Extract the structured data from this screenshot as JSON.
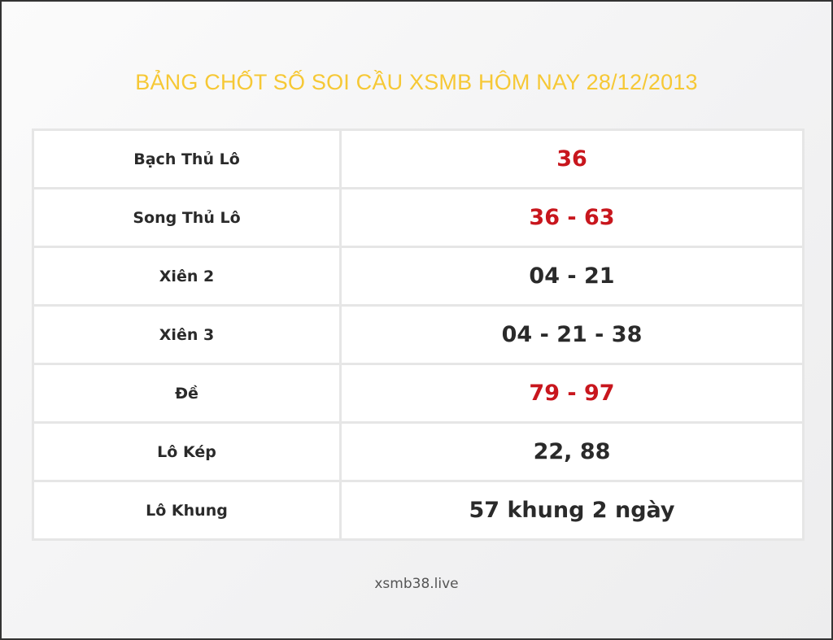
{
  "title": "BẢNG CHỐT SỐ SOI CẦU XSMB HÔM NAY 28/12/2013",
  "rows": [
    {
      "label": "Bạch Thủ Lô",
      "value": "36",
      "highlight": true
    },
    {
      "label": "Song Thủ Lô",
      "value": "36 - 63",
      "highlight": true
    },
    {
      "label": "Xiên 2",
      "value": "04 - 21",
      "highlight": false
    },
    {
      "label": "Xiên 3",
      "value": "04 - 21 - 38",
      "highlight": false
    },
    {
      "label": "Đề",
      "value": "79 - 97",
      "highlight": true
    },
    {
      "label": "Lô Kép",
      "value": "22, 88",
      "highlight": false
    },
    {
      "label": "Lô Khung",
      "value": "57 khung 2 ngày",
      "highlight": false
    }
  ],
  "footer": "xsmb38.live",
  "colors": {
    "title": "#f6c835",
    "highlight": "#c8161d",
    "text": "#2a2a2a"
  }
}
